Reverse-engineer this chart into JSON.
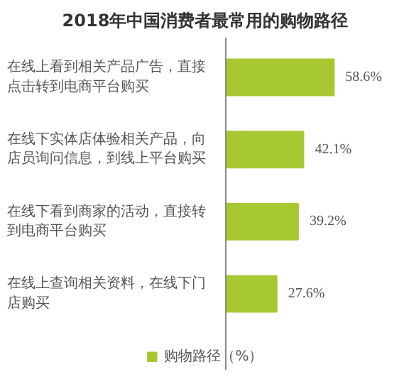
{
  "chart_data": {
    "type": "bar",
    "orientation": "horizontal",
    "title": "2018年中国消费者最常用的购物路径",
    "categories": [
      "在线上看到相关产品广告，直接点击转到电商平台购买",
      "在线下实体店体验相关产品，向店员询问信息，到线上平台购买",
      "在线下看到商家的活动，直接转到电商平台购买",
      "在线上查询相关资料，在线下门店购买"
    ],
    "series": [
      {
        "name": "购物路径（%）",
        "color": "#a8c832",
        "values": [
          58.6,
          42.1,
          39.2,
          27.6
        ],
        "value_labels": [
          "58.6%",
          "42.1%",
          "39.2%",
          "27.6%"
        ]
      }
    ],
    "legend": "bottom",
    "grid": false
  }
}
